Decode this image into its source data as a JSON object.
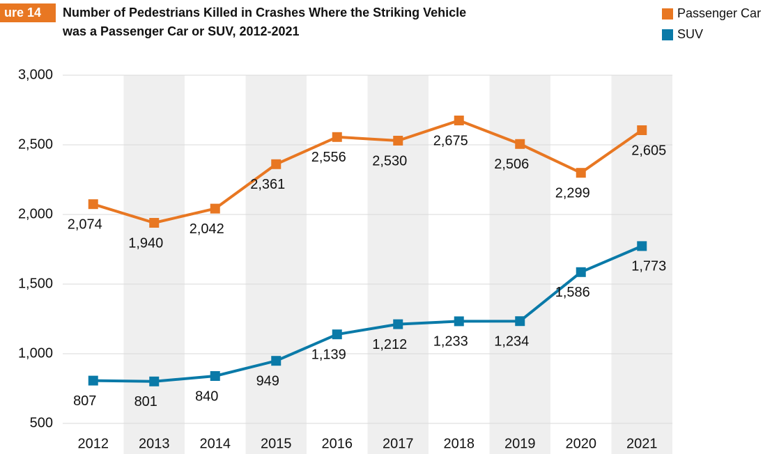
{
  "figure_label": "ure 14",
  "chart_data": {
    "type": "line",
    "title": [
      "Number of Pedestrians Killed in Crashes Where the Striking Vehicle",
      "was a Passenger Car or SUV, 2012-2021"
    ],
    "categories": [
      "2012",
      "2013",
      "2014",
      "2015",
      "2016",
      "2017",
      "2018",
      "2019",
      "2020",
      "2021"
    ],
    "series": [
      {
        "name": "Passenger Car",
        "color": "#e87722",
        "values": [
          2074,
          1940,
          2042,
          2361,
          2556,
          2530,
          2675,
          2506,
          2299,
          2605
        ],
        "value_labels": [
          "2,074",
          "1,940",
          "2,042",
          "2,361",
          "2,556",
          "2,530",
          "2,675",
          "2,506",
          "2,299",
          "2,605"
        ]
      },
      {
        "name": "SUV",
        "color": "#0a7aa8",
        "values": [
          807,
          801,
          840,
          949,
          1139,
          1212,
          1233,
          1234,
          1586,
          1773
        ],
        "value_labels": [
          "807",
          "801",
          "840",
          "949",
          "1,139",
          "1,212",
          "1,233",
          "1,234",
          "1,586",
          "1,773"
        ]
      }
    ],
    "ylim": [
      500,
      3000
    ],
    "yticks": [
      500,
      {
        "value": 1000,
        "label": "1,000"
      },
      {
        "value": 1500,
        "label": "1,500"
      },
      {
        "value": 2000,
        "label": "2,000"
      },
      {
        "value": 2500,
        "label": "2,500"
      },
      {
        "value": 3000,
        "label": "3,000"
      }
    ],
    "grid": true,
    "legend": "top-right",
    "band_color": "#efefef"
  }
}
